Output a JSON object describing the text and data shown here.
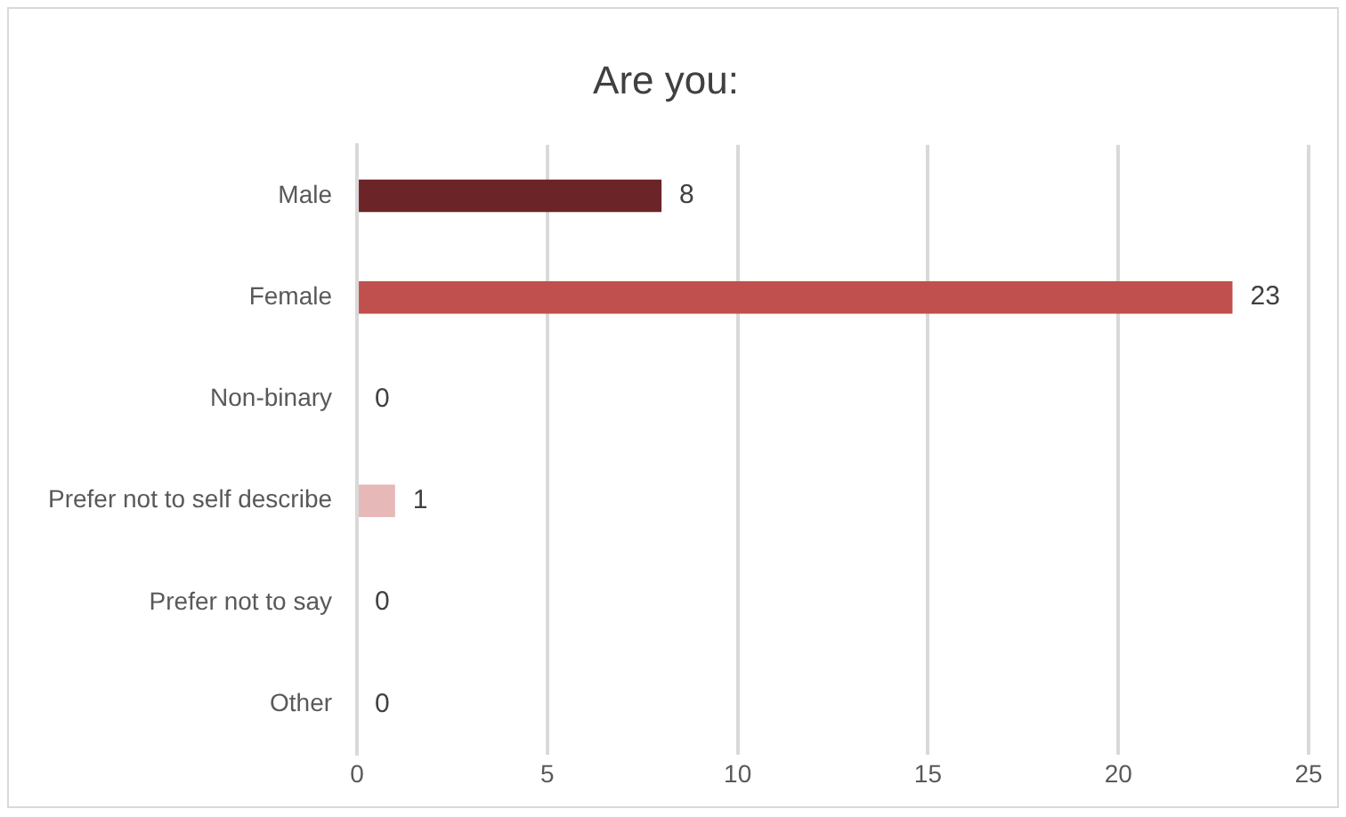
{
  "chart_data": {
    "type": "bar",
    "orientation": "horizontal",
    "title": "Are you:",
    "categories": [
      "Male",
      "Female",
      "Non-binary",
      "Prefer not to self describe",
      "Prefer not to say",
      "Other"
    ],
    "values": [
      8,
      23,
      0,
      1,
      0,
      0
    ],
    "colors": [
      "#6b2427",
      "#c0504d",
      "#c0504d",
      "#e6b8b7",
      "#c0504d",
      "#c0504d"
    ],
    "xlim": [
      0,
      25
    ],
    "xticks": [
      0,
      5,
      10,
      15,
      20,
      25
    ],
    "grid": "x",
    "data_labels": true,
    "legend": false
  }
}
